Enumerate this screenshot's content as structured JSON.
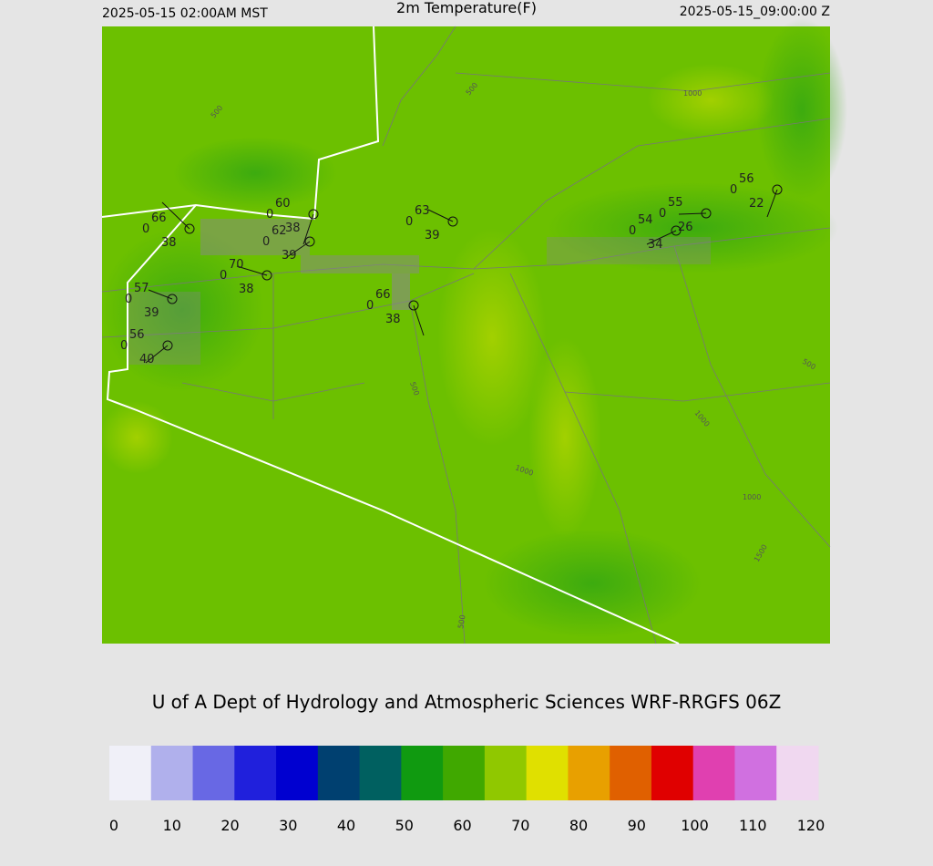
{
  "header": {
    "left": "2025-05-15 02:00AM MST",
    "title": "2m Temperature(F)",
    "right": "2025-05-15_09:00:00 Z"
  },
  "stations": [
    {
      "temp": 66,
      "pressure": 0,
      "dewpoint": 38
    },
    {
      "temp": 60,
      "pressure": 0,
      "dewpoint": 38
    },
    {
      "temp": 62,
      "pressure": 0,
      "dewpoint": 39
    },
    {
      "temp": 70,
      "pressure": 0,
      "dewpoint": 38
    },
    {
      "temp": 57,
      "pressure": 0,
      "dewpoint": 39
    },
    {
      "temp": 56,
      "pressure": 0,
      "dewpoint": 40
    },
    {
      "temp": 63,
      "pressure": 0,
      "dewpoint": 39
    },
    {
      "temp": 66,
      "pressure": 0,
      "dewpoint": 38
    },
    {
      "temp": 55,
      "pressure": 0,
      "dewpoint": 26
    },
    {
      "temp": 54,
      "pressure": 0,
      "dewpoint": 34
    },
    {
      "temp": 56,
      "pressure": 0,
      "dewpoint": 22
    }
  ],
  "contour_labels": [
    500,
    500,
    1000,
    500,
    1000,
    500,
    1000,
    1000,
    1500,
    500
  ],
  "credit": "U of A Dept of Hydrology and Atmospheric Sciences WRF-RRGFS 06Z",
  "colorbar": {
    "range": [
      0,
      120
    ],
    "ticks": [
      0,
      10,
      20,
      30,
      40,
      50,
      60,
      70,
      80,
      90,
      100,
      110,
      120
    ],
    "colors": [
      "#f0f0f8",
      "#b0b0ec",
      "#6868e4",
      "#2020dc",
      "#0000d0",
      "#004070",
      "#006060",
      "#109a10",
      "#40a800",
      "#90c800",
      "#e0e000",
      "#e8a000",
      "#e06000",
      "#e00000",
      "#e040b0",
      "#d070e0",
      "#f0d8f0"
    ]
  }
}
